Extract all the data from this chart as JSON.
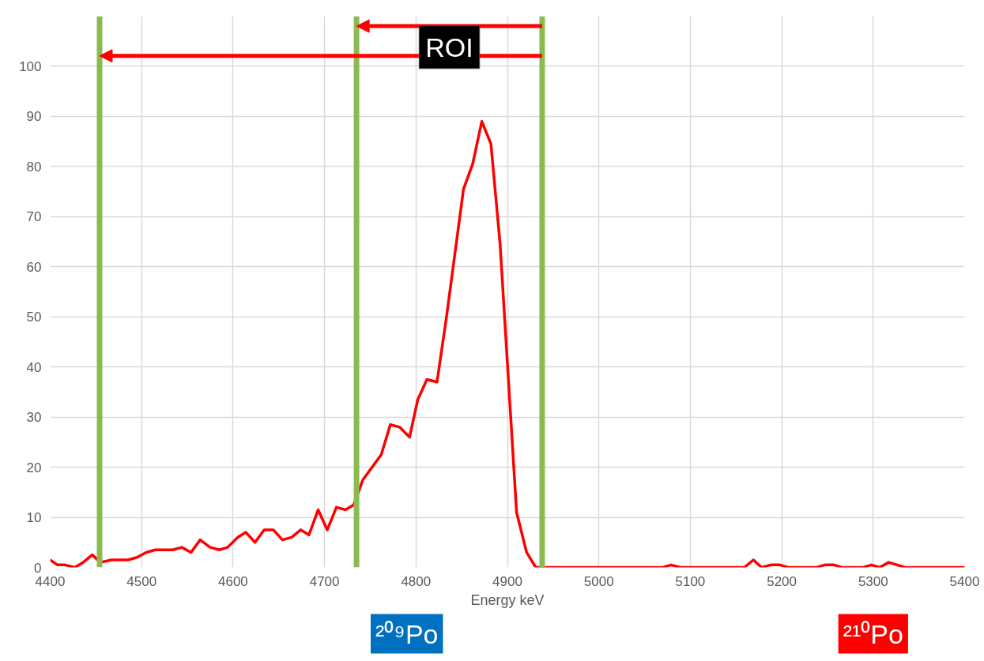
{
  "chart_data": {
    "type": "line",
    "xlabel": "Energy keV",
    "x": [
      4400,
      4408,
      4416,
      4427,
      4436,
      4446,
      4455,
      4467,
      4485,
      4495,
      4505,
      4515,
      4534,
      4544,
      4554,
      4564,
      4575,
      4585,
      4594,
      4605,
      4614,
      4624,
      4634,
      4644,
      4654,
      4664,
      4674,
      4683,
      4693,
      4703,
      4713,
      4723,
      4732,
      4742,
      4762,
      4772,
      4782,
      4793,
      4802,
      4812,
      4823,
      4833,
      4852,
      4862,
      4872,
      4882,
      4892,
      4910,
      4921,
      4931,
      5070,
      5079,
      5089,
      5159,
      5169,
      5178,
      5188,
      5198,
      5207,
      5238,
      5247,
      5257,
      5266,
      5289,
      5298,
      5307,
      5317,
      5335,
      5400
    ],
    "values": [
      1.5,
      0.5,
      0.5,
      0,
      1,
      2.5,
      1,
      1.5,
      1.5,
      2,
      3,
      3.5,
      3.5,
      4,
      3,
      5.5,
      4,
      3.5,
      4,
      6,
      7,
      5,
      7.5,
      7.5,
      5.5,
      6,
      7.5,
      6.5,
      11.5,
      7.5,
      12,
      11.5,
      12.5,
      17.5,
      22.5,
      28.5,
      28,
      26,
      33.5,
      37.5,
      37,
      49.5,
      75.5,
      80.5,
      89,
      84.5,
      64.5,
      11,
      3,
      0,
      0,
      0.5,
      0,
      0,
      1.5,
      0,
      0.5,
      0.5,
      0,
      0,
      0.5,
      0.5,
      0,
      0,
      0.5,
      0,
      1,
      0,
      0
    ],
    "color": "#ff0000",
    "xlim": [
      4400,
      5400
    ],
    "ylim": [
      0,
      110
    ],
    "xticks": [
      4400,
      4500,
      4600,
      4700,
      4800,
      4900,
      5000,
      5100,
      5200,
      5300,
      5400
    ],
    "yticks": [
      0,
      10,
      20,
      30,
      40,
      50,
      60,
      70,
      80,
      90,
      100
    ],
    "grid": true,
    "marker": "none",
    "line_style": "solid",
    "ref_lines": [
      {
        "axis": "x",
        "value": 4454,
        "color": "#8bbb50"
      },
      {
        "axis": "x",
        "value": 4735,
        "color": "#8bbb50"
      },
      {
        "axis": "x",
        "value": 4938,
        "color": "#8bbb50"
      }
    ],
    "annotations": [
      "ROI",
      "²⁰⁹Po",
      "²¹⁰Po"
    ]
  }
}
